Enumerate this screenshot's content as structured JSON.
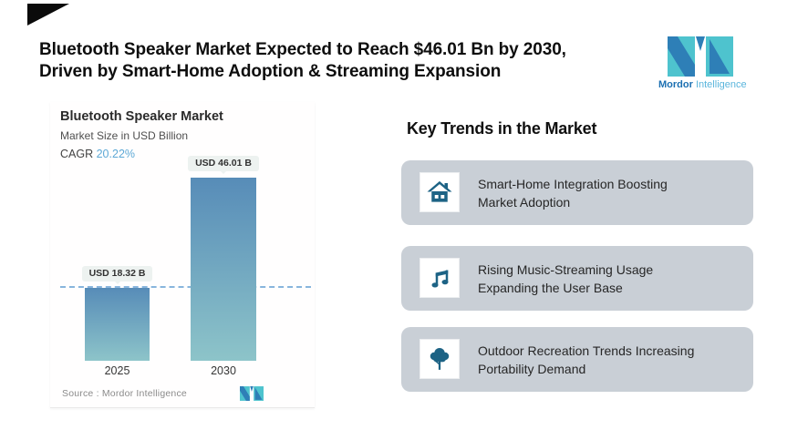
{
  "header": {
    "title_line1": "Bluetooth Speaker Market Expected to Reach $46.01 Bn by 2030,",
    "title_line2": "Driven by Smart-Home Adoption & Streaming Expansion",
    "logo": {
      "brand_bold": "Mordor",
      "brand_light": "Intelligence"
    }
  },
  "chart_panel": {
    "title": "Bluetooth Speaker Market",
    "subtitle": "Market Size in USD Billion",
    "cagr_label": "CAGR",
    "cagr_value": "20.22%",
    "source_label": "Source :",
    "source_value": "Mordor Intelligence"
  },
  "chart_data": {
    "type": "bar",
    "title": "Bluetooth Speaker Market",
    "subtitle": "Market Size in USD Billion",
    "cagr": "20.22%",
    "unit": "USD Billion",
    "categories": [
      "2025",
      "2030"
    ],
    "values": [
      18.32,
      46.01
    ],
    "bar_labels": [
      "USD 18.32 B",
      "USD 46.01 B"
    ],
    "reference_line": {
      "value": 18.32,
      "style": "dashed",
      "note": "level of 2025 bar top"
    },
    "ylim": [
      0,
      50
    ],
    "grid": false,
    "legend": "none",
    "colors": {
      "bar_top": "#578cb8",
      "bar_bottom": "#8dc4c9",
      "dashed_line": "#74a9d8"
    }
  },
  "key_trends": {
    "heading": "Key Trends in the Market",
    "cards": [
      {
        "icon": "house-icon",
        "line1": "Smart-Home Integration Boosting",
        "line2": "Market Adoption"
      },
      {
        "icon": "music-note-icon",
        "line1": "Rising Music-Streaming Usage",
        "line2": "Expanding the User Base"
      },
      {
        "icon": "tree-icon",
        "line1": "Outdoor Recreation Trends Increasing",
        "line2": "Portability Demand"
      }
    ]
  },
  "colors": {
    "icon_blue": "#1d6385",
    "card_background": "#c9cfd6",
    "logo_teal": "#4ec3ce",
    "logo_blue": "#2e7fb7",
    "cagr_accent": "#5ea9d6"
  }
}
